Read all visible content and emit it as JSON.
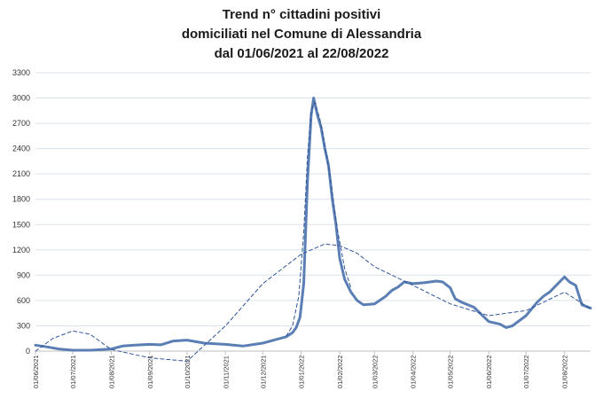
{
  "chart_data": {
    "type": "line",
    "title_lines": [
      "Trend n° cittadini positivi",
      "domiciliati nel Comune di Alessandria",
      "dal 01/06/2021 al 22/08/2022"
    ],
    "xlabel": "",
    "ylabel": "",
    "x_range": [
      "01/06/2021",
      "22/08/2022"
    ],
    "ylim": [
      0,
      3300
    ],
    "y_ticks": [
      0,
      300,
      600,
      900,
      1200,
      1500,
      1800,
      2100,
      2400,
      2700,
      3000,
      3300
    ],
    "x_ticks": [
      "01/06/2021",
      "01/07/2021",
      "01/08/2021",
      "01/09/2021",
      "01/10/2021",
      "01/11/2021",
      "01/12/2021",
      "01/01/2022",
      "01/02/2022",
      "01/03/2022",
      "01/04/2022",
      "01/05/2022",
      "01/06/2022",
      "01/07/2022",
      "01/08/2022"
    ],
    "grid": true,
    "legend": "none",
    "colors": {
      "series": "#5b7fb5",
      "trend": "#2f5597",
      "grid": "#dce3ec"
    },
    "series": [
      {
        "style": "solid",
        "x": [
          "01/06/2021",
          "10/06/2021",
          "20/06/2021",
          "01/07/2021",
          "15/07/2021",
          "01/08/2021",
          "10/08/2021",
          "20/08/2021",
          "01/09/2021",
          "10/09/2021",
          "20/09/2021",
          "01/10/2021",
          "15/10/2021",
          "01/11/2021",
          "15/11/2021",
          "01/12/2021",
          "10/12/2021",
          "20/12/2021",
          "25/12/2021",
          "28/12/2021",
          "31/12/2021",
          "03/01/2022",
          "06/01/2022",
          "09/01/2022",
          "11/01/2022",
          "14/01/2022",
          "17/01/2022",
          "20/01/2022",
          "23/01/2022",
          "26/01/2022",
          "29/01/2022",
          "01/02/2022",
          "05/02/2022",
          "10/02/2022",
          "15/02/2022",
          "20/02/2022",
          "01/03/2022",
          "10/03/2022",
          "15/03/2022",
          "20/03/2022",
          "25/03/2022",
          "01/04/2022",
          "10/04/2022",
          "20/04/2022",
          "25/04/2022",
          "01/05/2022",
          "05/05/2022",
          "10/05/2022",
          "20/05/2022",
          "01/06/2022",
          "10/06/2022",
          "15/06/2022",
          "20/06/2022",
          "01/07/2022",
          "10/07/2022",
          "15/07/2022",
          "20/07/2022",
          "01/08/2022",
          "05/08/2022",
          "10/08/2022",
          "15/08/2022",
          "22/08/2022"
        ],
        "values": [
          70,
          50,
          25,
          10,
          10,
          25,
          60,
          70,
          80,
          75,
          120,
          130,
          95,
          80,
          60,
          95,
          130,
          170,
          220,
          280,
          400,
          800,
          2000,
          2800,
          3000,
          2800,
          2650,
          2400,
          2200,
          1800,
          1500,
          1100,
          850,
          700,
          600,
          550,
          560,
          650,
          720,
          760,
          820,
          800,
          810,
          830,
          820,
          750,
          620,
          580,
          520,
          350,
          320,
          280,
          300,
          420,
          580,
          650,
          700,
          880,
          820,
          780,
          550,
          510
        ]
      },
      {
        "style": "dashed",
        "x": [
          "01/06/2021",
          "15/06/2021",
          "01/07/2021",
          "15/07/2021",
          "01/08/2021",
          "01/09/2021",
          "01/10/2021",
          "01/11/2021",
          "01/12/2021",
          "01/01/2022",
          "20/01/2022",
          "01/02/2022",
          "15/02/2022",
          "01/03/2022",
          "01/04/2022",
          "01/05/2022",
          "01/06/2022",
          "01/07/2022",
          "01/08/2022",
          "22/08/2022"
        ],
        "values": [
          0,
          150,
          240,
          200,
          20,
          -80,
          -120,
          300,
          800,
          1150,
          1270,
          1250,
          1160,
          1000,
          780,
          560,
          420,
          480,
          700,
          500
        ]
      },
      {
        "style": "dashed",
        "x": [
          "20/12/2021",
          "25/12/2021",
          "30/12/2021",
          "03/01/2022",
          "06/01/2022",
          "09/01/2022",
          "12/01/2022",
          "16/01/2022",
          "20/01/2022",
          "25/01/2022",
          "30/01/2022",
          "05/02/2022",
          "10/02/2022"
        ],
        "values": [
          180,
          300,
          650,
          1400,
          2300,
          2850,
          2950,
          2750,
          2450,
          2000,
          1450,
          980,
          750
        ]
      }
    ]
  }
}
